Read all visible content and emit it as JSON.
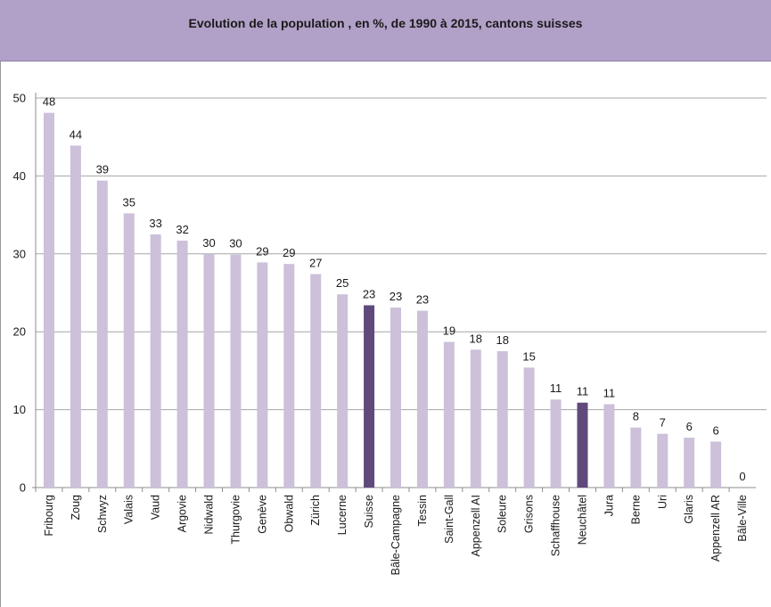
{
  "chart_data": {
    "type": "bar",
    "title": "Evolution de la population , en %, de 1990 à 2015, cantons suisses",
    "xlabel": "",
    "ylabel": "",
    "ylim": [
      0,
      50
    ],
    "yticks": [
      0,
      10,
      20,
      30,
      40,
      50
    ],
    "grid": true,
    "legend": "none",
    "categories": [
      "Fribourg",
      "Zoug",
      "Schwyz",
      "Valais",
      "Vaud",
      "Argovie",
      "Nidwald",
      "Thurgovie",
      "Genève",
      "Obwald",
      "Zürich",
      "Lucerne",
      "Suisse",
      "Bâle-Campagne",
      "Tessin",
      "Saint-Gall",
      "Appenzell AI",
      "Soleure",
      "Grisons",
      "Schaffhouse",
      "Neuchâtel",
      "Jura",
      "Berne",
      "Uri",
      "Glaris",
      "Appenzell AR",
      "Bâle-Ville"
    ],
    "values": [
      48.1,
      43.9,
      39.4,
      35.2,
      32.5,
      31.7,
      30.0,
      29.9,
      28.9,
      28.7,
      27.4,
      24.8,
      23.4,
      23.1,
      22.7,
      18.7,
      17.7,
      17.5,
      15.4,
      11.3,
      10.9,
      10.7,
      7.7,
      6.9,
      6.4,
      5.9,
      0.0
    ],
    "data_labels": [
      "48",
      "44",
      "39",
      "35",
      "33",
      "32",
      "30",
      "30",
      "29",
      "29",
      "27",
      "25",
      "23",
      "23",
      "23",
      "19",
      "18",
      "18",
      "15",
      "11",
      "11",
      "11",
      "8",
      "7",
      "6",
      "6",
      "0"
    ],
    "colors": {
      "bar": "#ccc0da",
      "highlight": "#604a7b",
      "title_band": "#b1a0c7",
      "grid": "#a6a6a6"
    },
    "highlighted": [
      "Suisse",
      "Neuchâtel"
    ]
  }
}
